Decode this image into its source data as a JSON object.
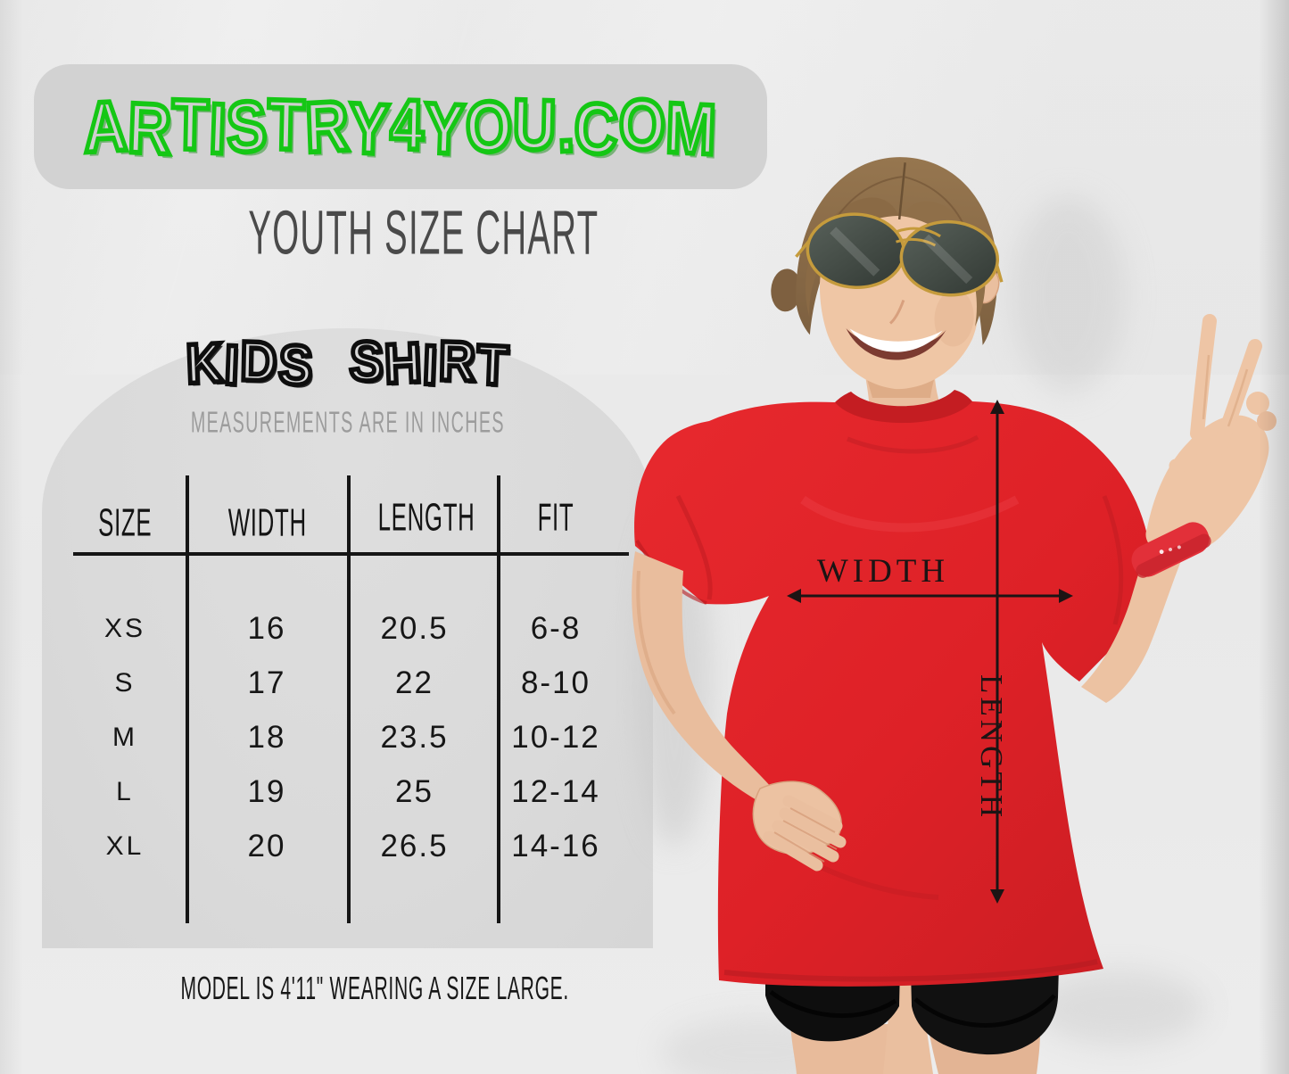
{
  "brand": {
    "site_name": "ARTISTRY4YOU.COM"
  },
  "header": {
    "title": "YOUTH SIZE CHART"
  },
  "size_chart": {
    "heading": "KIDS SHIRT",
    "subheading": "MEASUREMENTS ARE IN INCHES",
    "columns": [
      "SIZE",
      "WIDTH",
      "LENGTH",
      "FIT"
    ],
    "rows": [
      {
        "size": "XS",
        "width": "16",
        "length": "20.5",
        "fit": "6-8"
      },
      {
        "size": "S",
        "width": "17",
        "length": "22",
        "fit": "8-10"
      },
      {
        "size": "M",
        "width": "18",
        "length": "23.5",
        "fit": "10-12"
      },
      {
        "size": "L",
        "width": "19",
        "length": "25",
        "fit": "12-14"
      },
      {
        "size": "XL",
        "width": "20",
        "length": "26.5",
        "fit": "14-16"
      }
    ]
  },
  "footnote": "MODEL IS 4'11\" WEARING A SIZE LARGE.",
  "model_photo": {
    "width_label": "WIDTH",
    "length_label": "LENGTH",
    "alt": "Girl in red youth t-shirt and black shorts, wearing gold aviator sunglasses, making a peace sign, with width and length measurement arrows drawn on the shirt"
  },
  "colors": {
    "accent_green": "#15c715",
    "shirt_red": "#e0232a",
    "text_dark": "#141414",
    "muted_gray": "#9c9c9c"
  }
}
